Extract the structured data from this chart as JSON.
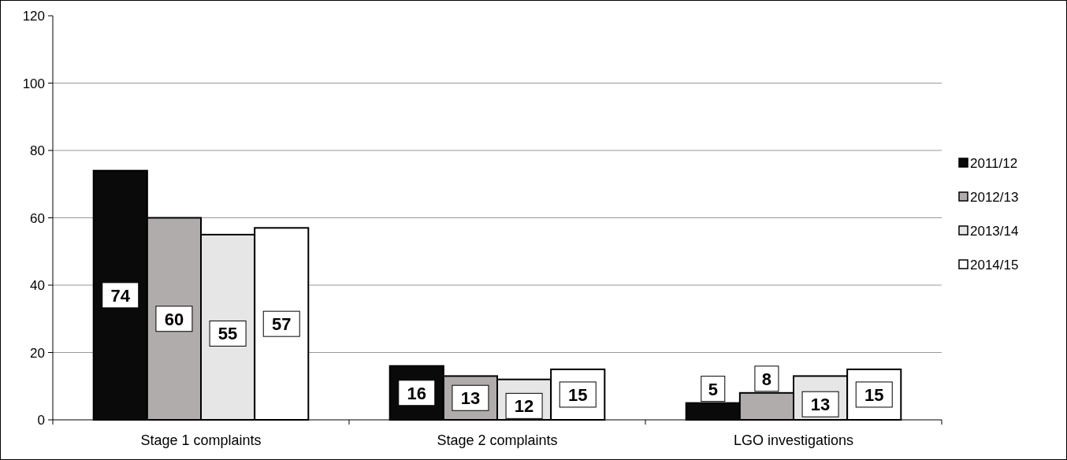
{
  "chart_data": {
    "type": "bar",
    "categories": [
      "Stage 1 complaints",
      "Stage 2 complaints",
      "LGO investigations"
    ],
    "series": [
      {
        "name": "2011/12",
        "color": "#0a0a0a",
        "values": [
          74,
          16,
          5
        ]
      },
      {
        "name": "2012/13",
        "color": "#b0acab",
        "values": [
          60,
          13,
          8
        ]
      },
      {
        "name": "2013/14",
        "color": "#e6e6e6",
        "values": [
          55,
          12,
          13
        ]
      },
      {
        "name": "2014/15",
        "color": "#ffffff",
        "values": [
          57,
          15,
          15
        ]
      }
    ],
    "ylim": [
      0,
      120
    ],
    "yticks": [
      0,
      20,
      40,
      60,
      80,
      100,
      120
    ],
    "grid": "y",
    "legend": "right",
    "data_labels": true
  }
}
